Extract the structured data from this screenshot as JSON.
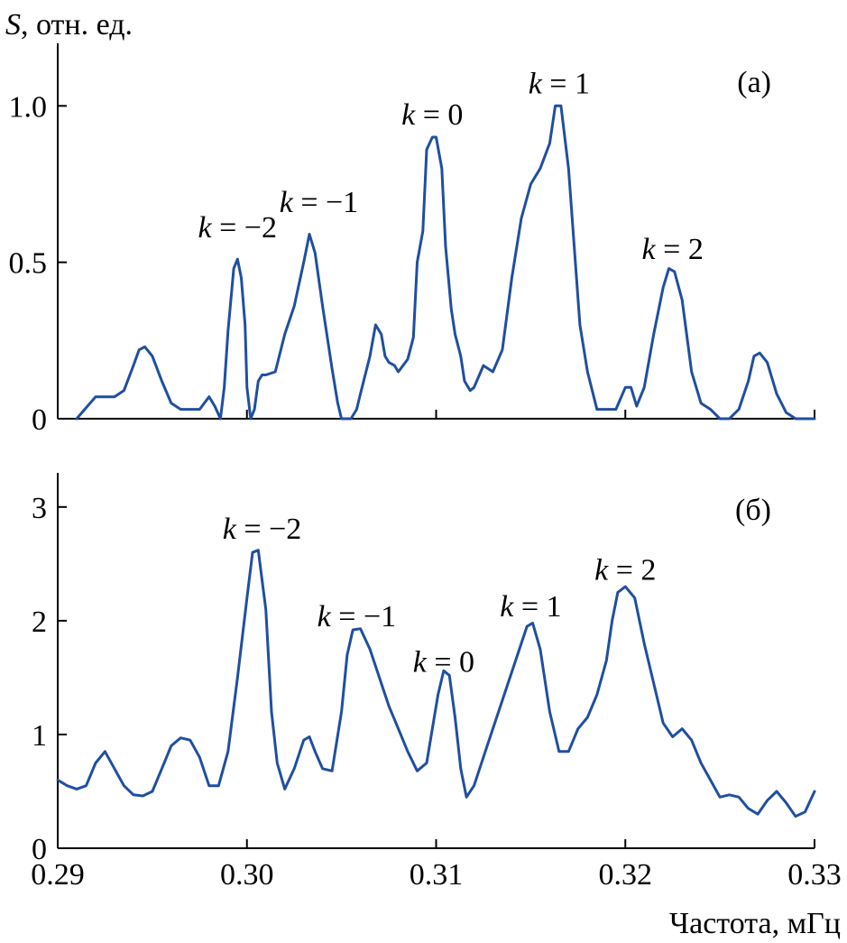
{
  "chart_data": [
    {
      "type": "line",
      "panel_label": "(а)",
      "ylabel_italic": "S",
      "ylabel_rest": ", отн. ед.",
      "xlim": [
        0.29,
        0.33
      ],
      "ylim": [
        0,
        1.2
      ],
      "yticks": [
        0,
        0.5,
        1.0
      ],
      "ytick_labels": [
        "0",
        "0.5",
        "1.0"
      ],
      "xticks": [
        0.29,
        0.3,
        0.31,
        0.32,
        0.33
      ],
      "line_color": "#1f4fa0",
      "annotations": [
        {
          "label": "k = −2",
          "x": 0.2995,
          "y": 0.58
        },
        {
          "label": "k = −1",
          "x": 0.3038,
          "y": 0.66
        },
        {
          "label": "k = 0",
          "x": 0.3098,
          "y": 0.94
        },
        {
          "label": "k = 1",
          "x": 0.3165,
          "y": 1.04
        },
        {
          "label": "k = 2",
          "x": 0.3225,
          "y": 0.51
        }
      ],
      "x": [
        0.291,
        0.292,
        0.2925,
        0.293,
        0.2935,
        0.294,
        0.2943,
        0.2946,
        0.295,
        0.2955,
        0.296,
        0.2965,
        0.297,
        0.2975,
        0.298,
        0.2983,
        0.2986,
        0.2988,
        0.299,
        0.2993,
        0.2995,
        0.2997,
        0.2999,
        0.3,
        0.3002,
        0.3004,
        0.3006,
        0.3008,
        0.301,
        0.3015,
        0.302,
        0.3025,
        0.303,
        0.3033,
        0.3036,
        0.304,
        0.3045,
        0.3048,
        0.305,
        0.3052,
        0.3055,
        0.3058,
        0.306,
        0.3065,
        0.3068,
        0.3071,
        0.3073,
        0.3075,
        0.3078,
        0.308,
        0.3085,
        0.3088,
        0.309,
        0.3093,
        0.3095,
        0.3098,
        0.31,
        0.3103,
        0.3105,
        0.3108,
        0.311,
        0.3113,
        0.3115,
        0.3118,
        0.312,
        0.3125,
        0.313,
        0.3135,
        0.314,
        0.3145,
        0.315,
        0.3155,
        0.316,
        0.3163,
        0.3166,
        0.317,
        0.3173,
        0.3176,
        0.318,
        0.3185,
        0.319,
        0.3195,
        0.32,
        0.3203,
        0.3206,
        0.321,
        0.3215,
        0.322,
        0.3223,
        0.3226,
        0.323,
        0.3235,
        0.324,
        0.3245,
        0.325,
        0.3255,
        0.326,
        0.3265,
        0.3268,
        0.3271,
        0.3275,
        0.328,
        0.3285,
        0.329,
        0.3295,
        0.33
      ],
      "y": [
        0.0,
        0.07,
        0.07,
        0.07,
        0.09,
        0.17,
        0.22,
        0.23,
        0.2,
        0.12,
        0.05,
        0.03,
        0.03,
        0.03,
        0.07,
        0.04,
        0.0,
        0.1,
        0.28,
        0.48,
        0.51,
        0.45,
        0.3,
        0.1,
        0.0,
        0.03,
        0.12,
        0.14,
        0.14,
        0.15,
        0.27,
        0.36,
        0.5,
        0.59,
        0.53,
        0.36,
        0.16,
        0.05,
        0.0,
        0.0,
        0.0,
        0.03,
        0.08,
        0.2,
        0.3,
        0.27,
        0.2,
        0.18,
        0.17,
        0.15,
        0.19,
        0.26,
        0.5,
        0.6,
        0.86,
        0.9,
        0.9,
        0.8,
        0.55,
        0.35,
        0.27,
        0.2,
        0.12,
        0.09,
        0.1,
        0.17,
        0.15,
        0.22,
        0.45,
        0.64,
        0.75,
        0.8,
        0.88,
        1.0,
        1.0,
        0.8,
        0.55,
        0.3,
        0.15,
        0.03,
        0.03,
        0.03,
        0.1,
        0.1,
        0.04,
        0.1,
        0.27,
        0.42,
        0.48,
        0.47,
        0.38,
        0.15,
        0.05,
        0.03,
        0.0,
        0.0,
        0.03,
        0.12,
        0.2,
        0.21,
        0.18,
        0.08,
        0.02,
        0.0,
        0.0,
        0.0
      ]
    },
    {
      "type": "line",
      "panel_label": "(б)",
      "xlabel": "Частота, мГц",
      "xlim": [
        0.29,
        0.33
      ],
      "ylim": [
        0,
        3.3
      ],
      "yticks": [
        0,
        1,
        2,
        3
      ],
      "ytick_labels": [
        "0",
        "1",
        "2",
        "3"
      ],
      "xticks": [
        0.29,
        0.3,
        0.31,
        0.32,
        0.33
      ],
      "xtick_labels": [
        "0.29",
        "0.30",
        "0.31",
        "0.32",
        "0.33"
      ],
      "line_color": "#1f4fa0",
      "annotations": [
        {
          "label": "k = −2",
          "x": 0.3008,
          "y": 2.72
        },
        {
          "label": "k = −1",
          "x": 0.3058,
          "y": 1.95
        },
        {
          "label": "k = 0",
          "x": 0.3104,
          "y": 1.55
        },
        {
          "label": "k = 1",
          "x": 0.315,
          "y": 2.04
        },
        {
          "label": "k = 2",
          "x": 0.32,
          "y": 2.36
        }
      ],
      "x": [
        0.29,
        0.2905,
        0.291,
        0.2915,
        0.292,
        0.2925,
        0.293,
        0.2935,
        0.294,
        0.2945,
        0.295,
        0.2955,
        0.296,
        0.2965,
        0.297,
        0.2975,
        0.298,
        0.2985,
        0.299,
        0.2995,
        0.3,
        0.3003,
        0.3006,
        0.301,
        0.3013,
        0.3016,
        0.302,
        0.3025,
        0.303,
        0.3033,
        0.3036,
        0.304,
        0.3045,
        0.305,
        0.3053,
        0.3056,
        0.306,
        0.3065,
        0.307,
        0.3075,
        0.308,
        0.3085,
        0.309,
        0.3095,
        0.3098,
        0.3101,
        0.3104,
        0.3107,
        0.311,
        0.3113,
        0.3116,
        0.312,
        0.3125,
        0.313,
        0.3135,
        0.314,
        0.3145,
        0.3148,
        0.3151,
        0.3155,
        0.316,
        0.3165,
        0.317,
        0.3175,
        0.318,
        0.3185,
        0.319,
        0.3193,
        0.3196,
        0.32,
        0.3205,
        0.321,
        0.3215,
        0.322,
        0.3225,
        0.323,
        0.3235,
        0.324,
        0.3245,
        0.325,
        0.3255,
        0.326,
        0.3265,
        0.327,
        0.3275,
        0.328,
        0.3285,
        0.329,
        0.3295,
        0.33
      ],
      "y": [
        0.6,
        0.55,
        0.52,
        0.55,
        0.75,
        0.85,
        0.7,
        0.55,
        0.47,
        0.46,
        0.5,
        0.7,
        0.9,
        0.97,
        0.95,
        0.8,
        0.55,
        0.55,
        0.85,
        1.5,
        2.2,
        2.6,
        2.62,
        2.1,
        1.2,
        0.75,
        0.52,
        0.7,
        0.95,
        0.98,
        0.85,
        0.7,
        0.68,
        1.2,
        1.7,
        1.92,
        1.93,
        1.75,
        1.5,
        1.25,
        1.05,
        0.85,
        0.68,
        0.75,
        1.05,
        1.35,
        1.56,
        1.52,
        1.15,
        0.7,
        0.45,
        0.55,
        0.8,
        1.05,
        1.3,
        1.55,
        1.8,
        1.95,
        1.98,
        1.75,
        1.2,
        0.85,
        0.85,
        1.05,
        1.15,
        1.35,
        1.65,
        2.0,
        2.25,
        2.3,
        2.2,
        1.8,
        1.45,
        1.1,
        0.98,
        1.05,
        0.95,
        0.75,
        0.6,
        0.45,
        0.47,
        0.45,
        0.35,
        0.3,
        0.42,
        0.5,
        0.4,
        0.28,
        0.32,
        0.5
      ]
    }
  ]
}
